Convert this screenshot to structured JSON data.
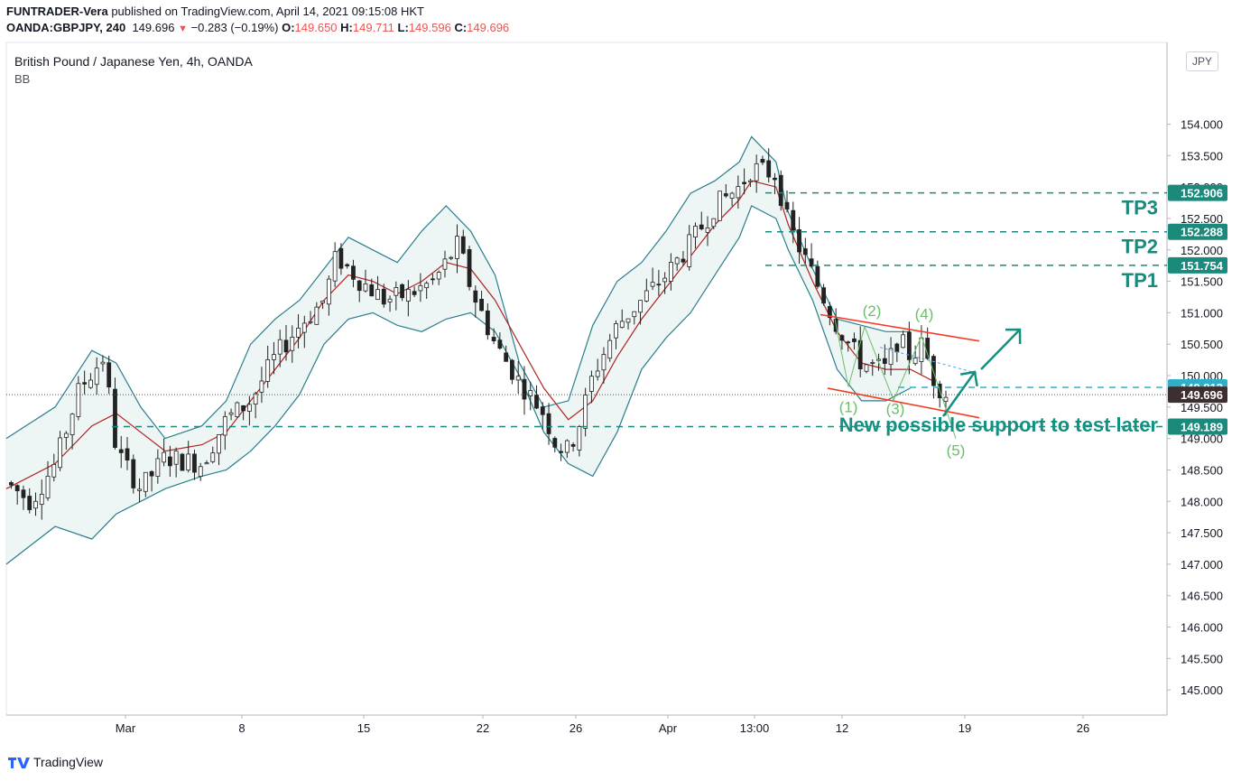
{
  "header": {
    "author": "FUNTRADER-Vera",
    "published_text": "published on TradingView.com, April 14, 2021 09:15:08 HKT",
    "symbol": "OANDA:GBPJPY, 240",
    "last": "149.696",
    "change": "−0.283 (−0.19%)",
    "o_label": "O:",
    "o": "149.650",
    "h_label": "H:",
    "h": "149.711",
    "l_label": "L:",
    "l": "149.596",
    "c_label": "C:",
    "c": "149.696"
  },
  "legend": {
    "title": "British Pound / Japanese Yen, 4h, OANDA",
    "indicator": "BB"
  },
  "currency_button": "JPY",
  "footer": {
    "brand": "TradingView"
  },
  "colors": {
    "candle_up": "#26a69a",
    "candle_down": "#ef5350",
    "bb_band": "#2a7f8c",
    "bb_basis": "#b22222",
    "bb_fill": "#e8f3f3",
    "target_line": "#1b8a7c",
    "channel": "#f23d24",
    "waves": "#6abf69",
    "arrows": "#149080",
    "projection": "#4fa3f7"
  },
  "chart_data": {
    "type": "candlestick",
    "title": "British Pound / Japanese Yen, 4h, OANDA",
    "indicator": "Bollinger Bands (BB)",
    "ylim": [
      144.6,
      155.3
    ],
    "y_ticks": [
      "145.000",
      "145.500",
      "146.000",
      "146.500",
      "147.000",
      "147.500",
      "148.000",
      "148.500",
      "149.000",
      "149.500",
      "150.000",
      "150.500",
      "151.000",
      "151.500",
      "152.000",
      "152.500",
      "153.000",
      "153.500",
      "154.000"
    ],
    "x_ticks": [
      "Mar",
      "8",
      "15",
      "22",
      "26",
      "Apr",
      "13:00",
      "12",
      "19",
      "26"
    ],
    "price_path": [
      [
        0,
        148.3
      ],
      [
        2,
        148.0
      ],
      [
        4,
        148.6
      ],
      [
        6,
        149.8
      ],
      [
        8,
        150.3
      ],
      [
        9,
        148.8
      ],
      [
        11,
        148.2
      ],
      [
        13,
        148.7
      ],
      [
        16,
        148.6
      ],
      [
        18,
        149.3
      ],
      [
        20,
        149.6
      ],
      [
        22,
        150.3
      ],
      [
        24,
        150.8
      ],
      [
        26,
        151.2
      ],
      [
        27,
        151.9
      ],
      [
        29,
        151.5
      ],
      [
        31,
        151.2
      ],
      [
        33,
        151.3
      ],
      [
        35,
        151.5
      ],
      [
        37,
        152.1
      ],
      [
        38,
        151.4
      ],
      [
        40,
        150.5
      ],
      [
        42,
        149.9
      ],
      [
        44,
        149.4
      ],
      [
        45,
        148.9
      ],
      [
        46,
        148.8
      ],
      [
        47,
        149.3
      ],
      [
        48,
        150.0
      ],
      [
        50,
        150.8
      ],
      [
        52,
        151.2
      ],
      [
        54,
        151.6
      ],
      [
        56,
        152.1
      ],
      [
        58,
        152.7
      ],
      [
        60,
        153.0
      ],
      [
        61,
        153.3
      ],
      [
        63,
        153.2
      ],
      [
        64,
        152.4
      ],
      [
        66,
        151.6
      ],
      [
        68,
        150.8
      ],
      [
        70,
        150.2
      ],
      [
        72,
        150.1
      ],
      [
        73,
        150.6
      ],
      [
        74,
        150.3
      ],
      [
        75,
        150.5
      ],
      [
        76,
        149.9
      ],
      [
        77,
        149.7
      ]
    ],
    "bb_upper_path": [
      [
        0,
        149.0
      ],
      [
        4,
        149.5
      ],
      [
        7,
        150.4
      ],
      [
        9,
        150.2
      ],
      [
        11,
        149.5
      ],
      [
        13,
        149.0
      ],
      [
        16,
        149.2
      ],
      [
        18,
        149.6
      ],
      [
        20,
        150.5
      ],
      [
        22,
        150.9
      ],
      [
        24,
        151.2
      ],
      [
        26,
        151.7
      ],
      [
        28,
        152.2
      ],
      [
        30,
        152.0
      ],
      [
        32,
        151.8
      ],
      [
        34,
        152.3
      ],
      [
        36,
        152.7
      ],
      [
        38,
        152.3
      ],
      [
        40,
        151.6
      ],
      [
        42,
        150.2
      ],
      [
        44,
        149.5
      ],
      [
        46,
        149.6
      ],
      [
        48,
        150.8
      ],
      [
        50,
        151.5
      ],
      [
        52,
        151.8
      ],
      [
        54,
        152.3
      ],
      [
        56,
        152.9
      ],
      [
        58,
        153.1
      ],
      [
        60,
        153.4
      ],
      [
        61,
        153.8
      ],
      [
        63,
        153.4
      ],
      [
        64,
        152.6
      ],
      [
        66,
        151.7
      ],
      [
        68,
        150.9
      ],
      [
        70,
        150.8
      ],
      [
        72,
        150.7
      ],
      [
        74,
        150.7
      ]
    ],
    "bb_basis_path": [
      [
        0,
        148.2
      ],
      [
        4,
        148.6
      ],
      [
        7,
        149.2
      ],
      [
        9,
        149.4
      ],
      [
        11,
        149.1
      ],
      [
        13,
        148.8
      ],
      [
        16,
        148.9
      ],
      [
        18,
        149.1
      ],
      [
        20,
        149.6
      ],
      [
        22,
        150.1
      ],
      [
        24,
        150.6
      ],
      [
        26,
        151.2
      ],
      [
        28,
        151.6
      ],
      [
        30,
        151.5
      ],
      [
        32,
        151.3
      ],
      [
        34,
        151.5
      ],
      [
        36,
        151.8
      ],
      [
        38,
        151.7
      ],
      [
        40,
        151.2
      ],
      [
        42,
        150.5
      ],
      [
        44,
        149.8
      ],
      [
        46,
        149.3
      ],
      [
        48,
        149.6
      ],
      [
        50,
        150.3
      ],
      [
        52,
        150.9
      ],
      [
        54,
        151.4
      ],
      [
        56,
        151.9
      ],
      [
        58,
        152.4
      ],
      [
        60,
        152.8
      ],
      [
        61,
        153.1
      ],
      [
        63,
        153.0
      ],
      [
        64,
        152.4
      ],
      [
        66,
        151.5
      ],
      [
        68,
        150.7
      ],
      [
        70,
        150.2
      ],
      [
        72,
        150.1
      ],
      [
        74,
        150.1
      ],
      [
        76,
        149.9
      ]
    ],
    "bb_lower_path": [
      [
        0,
        147.0
      ],
      [
        4,
        147.6
      ],
      [
        7,
        147.4
      ],
      [
        9,
        147.8
      ],
      [
        11,
        148.0
      ],
      [
        13,
        148.2
      ],
      [
        16,
        148.4
      ],
      [
        18,
        148.5
      ],
      [
        20,
        148.8
      ],
      [
        22,
        149.2
      ],
      [
        24,
        149.7
      ],
      [
        26,
        150.5
      ],
      [
        28,
        150.9
      ],
      [
        30,
        151.0
      ],
      [
        32,
        150.8
      ],
      [
        34,
        150.7
      ],
      [
        36,
        150.9
      ],
      [
        38,
        151.0
      ],
      [
        40,
        150.7
      ],
      [
        42,
        150.0
      ],
      [
        44,
        149.1
      ],
      [
        46,
        148.6
      ],
      [
        48,
        148.4
      ],
      [
        50,
        149.1
      ],
      [
        52,
        150.1
      ],
      [
        54,
        150.6
      ],
      [
        56,
        151.0
      ],
      [
        58,
        151.6
      ],
      [
        60,
        152.2
      ],
      [
        61,
        152.7
      ],
      [
        63,
        152.5
      ],
      [
        64,
        152.0
      ],
      [
        66,
        151.2
      ],
      [
        68,
        150.1
      ],
      [
        70,
        149.6
      ],
      [
        72,
        149.6
      ],
      [
        74,
        149.8
      ]
    ],
    "horizontal_levels": [
      {
        "label": "TP3",
        "value": 152.906
      },
      {
        "label": "TP2",
        "value": 152.288
      },
      {
        "label": "TP1",
        "value": 151.754
      },
      {
        "label": "",
        "value": 149.813
      },
      {
        "label": "",
        "value": 149.189
      }
    ],
    "price_tags": [
      {
        "value": "152.906",
        "y": 152.906,
        "color": "#1b8a7c"
      },
      {
        "value": "152.288",
        "y": 152.288,
        "color": "#1b8a7c"
      },
      {
        "value": "151.754",
        "y": 151.754,
        "color": "#1b8a7c"
      },
      {
        "value": "149.813",
        "y": 149.813,
        "color": "#2fb0c8"
      },
      {
        "value": "149.696",
        "y": 149.696,
        "color": "#3d2f2f"
      },
      {
        "value": "149.189",
        "y": 149.189,
        "color": "#1b8a7c"
      }
    ],
    "wave_labels": [
      "(1)",
      "(2)",
      "(3)",
      "(4)",
      "(5)"
    ],
    "annotation": "New possible support to test later",
    "last_price": 149.696
  }
}
